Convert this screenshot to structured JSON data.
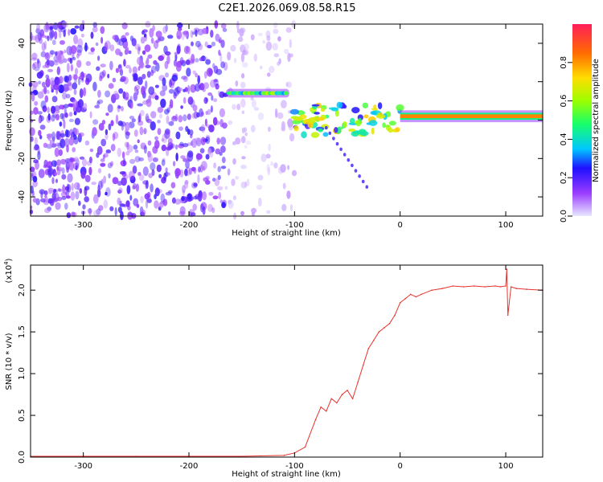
{
  "figure_title": "C2E1.2026.069.08.58.R15",
  "chart_data": [
    {
      "type": "heatmap",
      "xlabel": "Height of straight line (km)",
      "ylabel": "Frequency (Hz)",
      "xlim": [
        -350,
        135
      ],
      "ylim": [
        -50,
        50
      ],
      "xticks": [
        -300,
        -200,
        -100,
        0,
        100
      ],
      "yticks": [
        -40,
        -20,
        0,
        20,
        40
      ],
      "colorbar": {
        "label": "Normalized spectral amplitude",
        "range": [
          0,
          1
        ],
        "ticks": [
          "0.0",
          "0.2",
          "0.4",
          "0.6",
          "0.8"
        ],
        "colormap": "rainbow"
      },
      "regions": [
        {
          "name": "noise",
          "x": [
            -350,
            -165
          ],
          "y": [
            -50,
            50
          ],
          "amplitude": 0.2
        },
        {
          "name": "sparse-noise",
          "x": [
            -165,
            -100
          ],
          "y": [
            -50,
            50
          ],
          "amplitude": 0.05
        },
        {
          "name": "ridge",
          "x": [
            -165,
            -105
          ],
          "y": [
            13,
            15
          ],
          "amplitude": 0.35
        },
        {
          "name": "transition",
          "x": [
            -100,
            0
          ],
          "y": [
            -8,
            8
          ],
          "amplitude": 0.45
        },
        {
          "name": "carrier",
          "x": [
            0,
            135
          ],
          "y": [
            1,
            3
          ],
          "amplitude": 0.85
        }
      ]
    },
    {
      "type": "line",
      "xlabel": "Height of straight line (km)",
      "ylabel": "SNR (10 * v/v)",
      "multiplier_label": "(x10^4)",
      "xlim": [
        -350,
        135
      ],
      "ylim": [
        0,
        2.3
      ],
      "xticks": [
        -300,
        -200,
        -100,
        0,
        100
      ],
      "yticks": [
        "0.0",
        "0.5",
        "1.0",
        "1.5",
        "2.0"
      ],
      "series": [
        {
          "color": "#e8332c",
          "x": [
            -350,
            -300,
            -250,
            -200,
            -150,
            -110,
            -100,
            -90,
            -80,
            -75,
            -70,
            -65,
            -60,
            -55,
            -50,
            -45,
            -40,
            -35,
            -30,
            -25,
            -20,
            -15,
            -10,
            -5,
            0,
            5,
            10,
            15,
            20,
            30,
            40,
            50,
            60,
            70,
            80,
            90,
            95,
            100,
            101,
            102,
            105,
            110,
            120,
            135
          ],
          "y": [
            0.01,
            0.01,
            0.01,
            0.01,
            0.01,
            0.02,
            0.05,
            0.12,
            0.45,
            0.6,
            0.55,
            0.7,
            0.65,
            0.75,
            0.8,
            0.7,
            0.9,
            1.1,
            1.3,
            1.4,
            1.5,
            1.55,
            1.6,
            1.7,
            1.85,
            1.9,
            1.95,
            1.92,
            1.95,
            2.0,
            2.02,
            2.05,
            2.04,
            2.05,
            2.04,
            2.05,
            2.04,
            2.05,
            2.25,
            1.7,
            2.04,
            2.02,
            2.01,
            2.0
          ]
        }
      ]
    }
  ]
}
